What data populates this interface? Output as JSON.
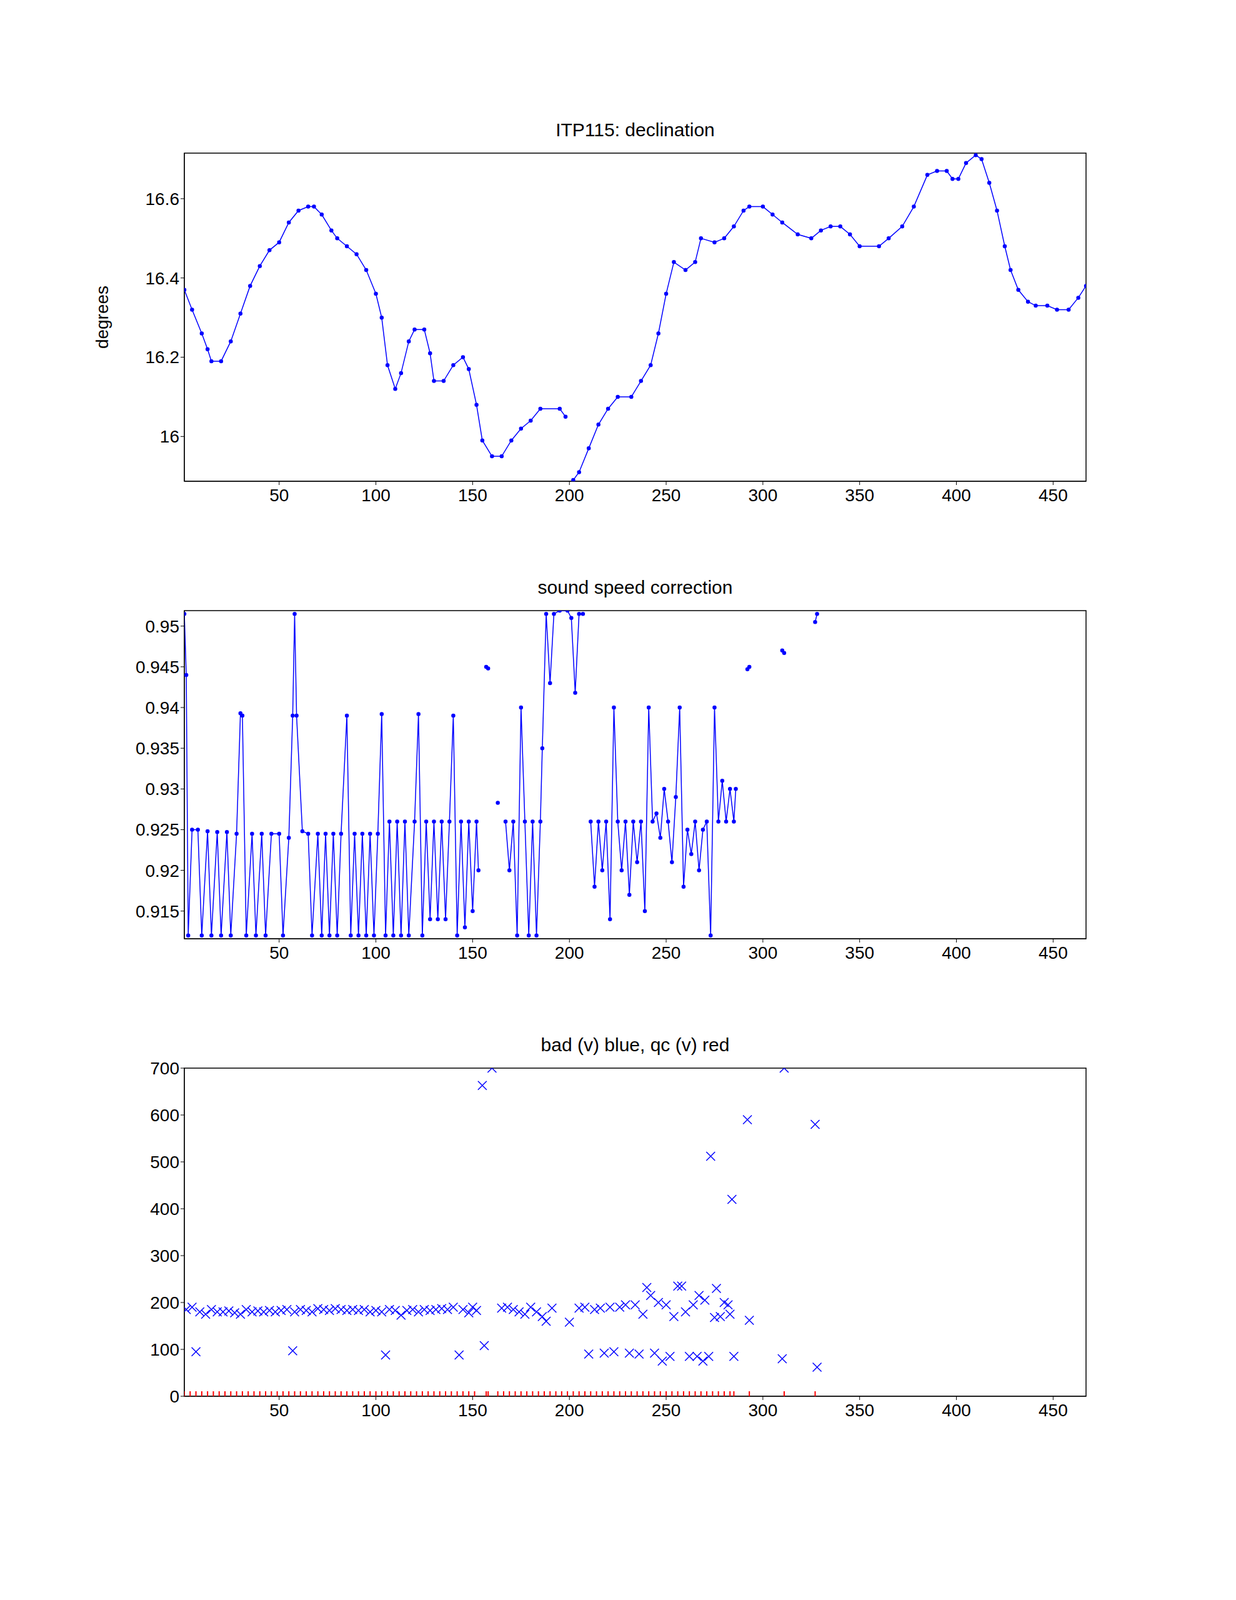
{
  "chart_data": [
    {
      "type": "line",
      "title": "ITP115: declination",
      "y_label": "degrees",
      "color": "#0000ff",
      "marker": "dot",
      "x": [
        1,
        5,
        10,
        13,
        15,
        20,
        25,
        30,
        35,
        40,
        45,
        50,
        55,
        60,
        65,
        68,
        72,
        77,
        80,
        85,
        90,
        95,
        100,
        103,
        106,
        110,
        113,
        117,
        120,
        125,
        128,
        130,
        135,
        140,
        145,
        148,
        152,
        155,
        160,
        165,
        170,
        175,
        180,
        185,
        195,
        198,
        200,
        202,
        205,
        210,
        215,
        220,
        225,
        232,
        237,
        242,
        246,
        250,
        254,
        260,
        265,
        268,
        275,
        280,
        285,
        290,
        293,
        300,
        305,
        310,
        318,
        325,
        330,
        335,
        340,
        345,
        350,
        360,
        365,
        372,
        378,
        385,
        390,
        395,
        398,
        401,
        405,
        410,
        413,
        417,
        421,
        425,
        428,
        432,
        437,
        441,
        447,
        452,
        458,
        463,
        467
      ],
      "values": [
        16.37,
        16.32,
        16.26,
        16.22,
        16.19,
        16.19,
        16.24,
        16.31,
        16.38,
        16.43,
        16.47,
        16.49,
        16.54,
        16.57,
        16.58,
        16.58,
        16.56,
        16.52,
        16.5,
        16.48,
        16.46,
        16.42,
        16.36,
        16.3,
        16.18,
        16.12,
        16.16,
        16.24,
        16.27,
        16.27,
        16.21,
        16.14,
        16.14,
        16.18,
        16.2,
        16.17,
        16.08,
        15.99,
        15.95,
        15.95,
        15.99,
        16.02,
        16.04,
        16.07,
        16.07,
        16.05,
        null,
        15.89,
        15.91,
        15.97,
        16.03,
        16.07,
        16.1,
        16.1,
        16.14,
        16.18,
        16.26,
        16.36,
        16.44,
        16.42,
        16.44,
        16.5,
        16.49,
        16.5,
        16.53,
        16.57,
        16.58,
        16.58,
        16.56,
        16.54,
        16.51,
        16.5,
        16.52,
        16.53,
        16.53,
        16.51,
        16.48,
        16.48,
        16.5,
        16.53,
        16.58,
        16.66,
        16.67,
        16.67,
        16.65,
        16.65,
        16.69,
        16.71,
        16.7,
        16.64,
        16.57,
        16.48,
        16.42,
        16.37,
        16.34,
        16.33,
        16.33,
        16.32,
        16.32,
        16.35,
        16.38
      ],
      "xlim": [
        1,
        467
      ],
      "xticks": [
        50,
        100,
        150,
        200,
        250,
        300,
        350,
        400,
        450
      ],
      "ylim": [
        15.887,
        16.715
      ],
      "yticks": [
        16,
        16.2,
        16.4,
        16.6
      ]
    },
    {
      "type": "line",
      "title": "sound speed correction",
      "color": "#0000ff",
      "marker": "dot",
      "x": [
        1,
        2,
        3,
        5,
        8,
        10,
        13,
        15,
        18,
        20,
        23,
        25,
        28,
        30,
        31,
        33,
        36,
        38,
        41,
        43,
        46,
        50,
        52,
        55,
        57,
        58,
        59,
        62,
        65,
        67,
        70,
        72,
        74,
        76,
        78,
        80,
        82,
        85,
        87,
        89,
        91,
        93,
        95,
        97,
        99,
        101,
        103,
        105,
        107,
        109,
        111,
        113,
        115,
        117,
        120,
        122,
        124,
        126,
        128,
        130,
        132,
        134,
        136,
        138,
        140,
        142,
        144,
        146,
        148,
        150,
        152,
        153,
        155,
        157,
        158,
        160,
        163,
        165,
        167,
        169,
        171,
        173,
        175,
        177,
        179,
        181,
        183,
        185,
        186,
        188,
        190,
        192,
        195,
        199,
        201,
        203,
        205,
        207,
        209,
        211,
        213,
        215,
        217,
        219,
        221,
        223,
        225,
        227,
        229,
        231,
        233,
        235,
        237,
        239,
        241,
        243,
        245,
        247,
        249,
        251,
        253,
        255,
        257,
        259,
        261,
        263,
        265,
        267,
        269,
        271,
        273,
        275,
        277,
        279,
        281,
        283,
        285,
        286,
        289,
        292,
        293,
        300,
        310,
        311,
        320,
        327,
        328
      ],
      "values": [
        0.9515,
        0.944,
        0.912,
        0.925,
        0.925,
        0.912,
        0.9248,
        0.912,
        0.9247,
        0.912,
        0.9247,
        0.912,
        0.9245,
        0.9393,
        0.939,
        0.912,
        0.9245,
        0.912,
        0.9245,
        0.912,
        0.9245,
        0.9245,
        0.912,
        0.924,
        0.939,
        0.9515,
        0.939,
        0.9248,
        0.9245,
        0.912,
        0.9245,
        0.912,
        0.9245,
        0.912,
        0.9245,
        0.912,
        0.9245,
        0.939,
        0.912,
        0.9245,
        0.912,
        0.9245,
        0.912,
        0.9245,
        0.912,
        0.9245,
        0.9392,
        0.912,
        0.926,
        0.912,
        0.926,
        0.912,
        0.926,
        0.912,
        0.926,
        0.9392,
        0.912,
        0.926,
        0.914,
        0.926,
        0.914,
        0.926,
        0.914,
        0.926,
        0.939,
        0.912,
        0.926,
        0.913,
        0.926,
        0.915,
        0.926,
        0.92,
        null,
        0.945,
        0.9448,
        null,
        0.9283,
        null,
        0.926,
        0.92,
        0.926,
        0.912,
        0.94,
        0.926,
        0.912,
        0.926,
        0.912,
        0.926,
        0.935,
        0.9515,
        0.943,
        0.9515,
        0.9519,
        0.9519,
        0.951,
        0.9418,
        0.9515,
        0.9515,
        null,
        0.926,
        0.918,
        0.926,
        0.92,
        0.926,
        0.914,
        0.94,
        0.926,
        0.92,
        0.926,
        0.917,
        0.926,
        0.921,
        0.926,
        0.915,
        0.94,
        0.926,
        0.927,
        0.924,
        0.93,
        0.926,
        0.921,
        0.929,
        0.94,
        0.918,
        0.925,
        0.922,
        0.926,
        0.92,
        0.925,
        0.926,
        0.912,
        0.94,
        0.926,
        0.931,
        0.926,
        0.93,
        0.926,
        0.93,
        null,
        0.9447,
        0.945,
        null,
        0.947,
        0.9467,
        null,
        0.9505,
        0.9515
      ],
      "xlim": [
        1,
        467
      ],
      "xticks": [
        50,
        100,
        150,
        200,
        250,
        300,
        350,
        400,
        450
      ],
      "ylim": [
        0.9116,
        0.9519
      ],
      "yticks": [
        0.915,
        0.92,
        0.925,
        0.93,
        0.935,
        0.94,
        0.945,
        0.95
      ]
    },
    {
      "type": "scatter",
      "title": "bad (v) blue, qc (v) red",
      "series": [
        {
          "color": "#0000ff",
          "marker": "x",
          "x": [
            2,
            5,
            7,
            9,
            12,
            15,
            18,
            21,
            24,
            27,
            30,
            33,
            36,
            39,
            42,
            45,
            48,
            51,
            54,
            57,
            58,
            61,
            64,
            67,
            70,
            73,
            76,
            79,
            82,
            85,
            88,
            91,
            94,
            97,
            100,
            103,
            105,
            107,
            110,
            113,
            116,
            119,
            122,
            125,
            128,
            131,
            134,
            137,
            140,
            143,
            145,
            148,
            150,
            152,
            155,
            156,
            160,
            165,
            168,
            171,
            174,
            177,
            180,
            183,
            186,
            188,
            191,
            200,
            205,
            208,
            210,
            213,
            216,
            218,
            221,
            223,
            226,
            229,
            231,
            234,
            236,
            238,
            240,
            242,
            244,
            246,
            248,
            250,
            252,
            254,
            256,
            258,
            260,
            262,
            264,
            266,
            267,
            269,
            270,
            272,
            273,
            275,
            276,
            278,
            280,
            282,
            283,
            284,
            285,
            292,
            293,
            310,
            311,
            327,
            328
          ],
          "values": [
            185,
            190,
            95,
            180,
            175,
            185,
            180,
            180,
            182,
            178,
            175,
            185,
            180,
            182,
            180,
            183,
            180,
            183,
            185,
            97,
            180,
            185,
            183,
            180,
            187,
            185,
            183,
            187,
            185,
            183,
            185,
            183,
            185,
            180,
            183,
            180,
            88,
            185,
            183,
            173,
            183,
            185,
            180,
            185,
            183,
            185,
            187,
            185,
            190,
            88,
            185,
            178,
            190,
            183,
            663,
            108,
            700,
            188,
            190,
            185,
            180,
            175,
            190,
            180,
            170,
            160,
            188,
            158,
            188,
            190,
            90,
            185,
            188,
            92,
            190,
            95,
            190,
            195,
            92,
            195,
            90,
            175,
            232,
            215,
            92,
            200,
            75,
            195,
            85,
            170,
            235,
            235,
            180,
            85,
            195,
            85,
            215,
            75,
            205,
            85,
            512,
            168,
            230,
            170,
            200,
            195,
            175,
            420,
            85,
            590,
            162,
            80,
            700,
            580,
            62
          ]
        },
        {
          "color": "#ff0000",
          "marker": "vline",
          "x": [
            1,
            4,
            7,
            10,
            13,
            16,
            19,
            22,
            25,
            28,
            31,
            34,
            37,
            40,
            43,
            46,
            49,
            52,
            55,
            58,
            61,
            64,
            67,
            70,
            73,
            76,
            79,
            82,
            85,
            88,
            91,
            94,
            97,
            100,
            103,
            106,
            109,
            112,
            115,
            118,
            121,
            124,
            127,
            130,
            133,
            136,
            139,
            142,
            145,
            148,
            151,
            157,
            158,
            163,
            166,
            169,
            172,
            175,
            178,
            181,
            184,
            187,
            190,
            193,
            196,
            199,
            202,
            205,
            208,
            211,
            214,
            217,
            220,
            223,
            226,
            229,
            232,
            235,
            238,
            241,
            244,
            247,
            250,
            253,
            256,
            259,
            262,
            265,
            268,
            271,
            274,
            277,
            280,
            283,
            285,
            293,
            311,
            327
          ],
          "values": [
            0,
            0,
            0,
            0,
            0,
            0,
            0,
            0,
            0,
            0,
            0,
            0,
            0,
            0,
            0,
            0,
            0,
            0,
            0,
            0,
            0,
            0,
            0,
            0,
            0,
            0,
            0,
            0,
            0,
            0,
            0,
            0,
            0,
            0,
            0,
            0,
            0,
            0,
            0,
            0,
            0,
            0,
            0,
            0,
            0,
            0,
            0,
            0,
            0,
            0,
            0,
            0,
            0,
            0,
            0,
            0,
            0,
            0,
            0,
            0,
            0,
            0,
            0,
            0,
            0,
            0,
            0,
            0,
            0,
            0,
            0,
            0,
            0,
            0,
            0,
            0,
            0,
            0,
            0,
            0,
            0,
            0,
            0,
            0,
            0,
            0,
            0,
            0,
            0,
            0,
            0,
            0,
            0,
            0,
            0,
            0,
            0,
            0
          ]
        }
      ],
      "xlim": [
        1,
        467
      ],
      "xticks": [
        50,
        100,
        150,
        200,
        250,
        300,
        350,
        400,
        450
      ],
      "ylim": [
        0,
        700
      ],
      "yticks": [
        0,
        100,
        200,
        300,
        400,
        500,
        600,
        700
      ]
    }
  ]
}
